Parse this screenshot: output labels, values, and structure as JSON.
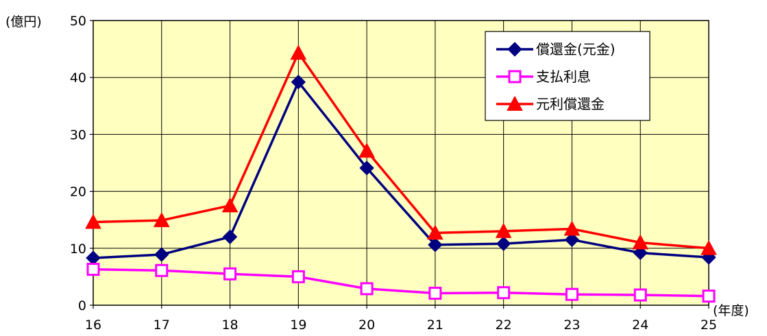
{
  "chart_data": {
    "type": "line",
    "categories": [
      "16",
      "17",
      "18",
      "19",
      "20",
      "21",
      "22",
      "23",
      "24",
      "25"
    ],
    "x_unit_label": "(年度)",
    "y_unit_label": "(億円)",
    "ylim": [
      0,
      50
    ],
    "yticks": [
      "0",
      "10",
      "20",
      "30",
      "40",
      "50"
    ],
    "grid": true,
    "legend_position": "top-right",
    "series": [
      {
        "name": "償還金(元金)",
        "color": "#000080",
        "marker": "diamond",
        "values": [
          8.3,
          8.9,
          12.0,
          39.2,
          24.1,
          10.6,
          10.8,
          11.5,
          9.2,
          8.4
        ]
      },
      {
        "name": "支払利息",
        "color": "#ff00ff",
        "marker": "open-square",
        "values": [
          6.3,
          6.1,
          5.5,
          5.0,
          2.9,
          2.1,
          2.2,
          1.9,
          1.8,
          1.6
        ]
      },
      {
        "name": "元利償還金",
        "color": "#ff0000",
        "marker": "triangle",
        "values": [
          14.6,
          14.9,
          17.5,
          44.3,
          27.1,
          12.7,
          13.0,
          13.4,
          11.0,
          10.0
        ]
      }
    ]
  },
  "colors": {
    "plot_background": "#ffffc0",
    "gridline": "#000000"
  }
}
